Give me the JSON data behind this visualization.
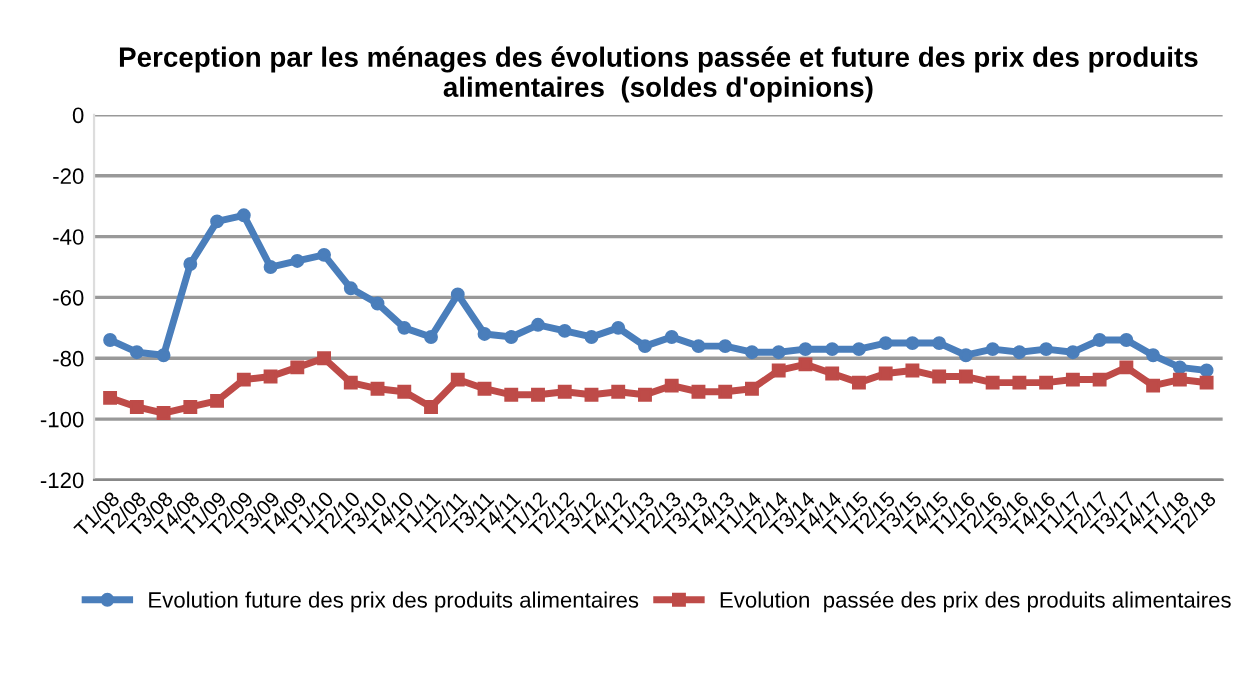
{
  "chart_data": {
    "type": "line",
    "title": "Perception par les ménages des évolutions passée et future des prix des produits alimentaires  (soldes d'opinions)",
    "categories": [
      "T1/08",
      "T2/08",
      "T3/08",
      "T4/08",
      "T1/09",
      "T2/09",
      "T3/09",
      "T4/09",
      "T1/10",
      "T2/10",
      "T3/10",
      "T4/10",
      "T1/11",
      "T2/11",
      "T3/11",
      "T4/11",
      "T1/12",
      "T2/12",
      "T3/12",
      "T4/12",
      "T1/13",
      "T2/13",
      "T3/13",
      "T4/13",
      "T1/14",
      "T2/14",
      "T3/14",
      "T4/14",
      "T1/15",
      "T2/15",
      "T3/15",
      "T4/15",
      "T1/16",
      "T2/16",
      "T3/16",
      "T4/16",
      "T1/17",
      "T2/17",
      "T3/17",
      "T4/17",
      "T1/18",
      "T2/18"
    ],
    "series": [
      {
        "name": "Evolution future des prix des produits alimentaires",
        "color": "#4a7ebb",
        "marker": "circle",
        "values": [
          -74,
          -78,
          -79,
          -49,
          -35,
          -33,
          -50,
          -48,
          -46,
          -57,
          -62,
          -70,
          -73,
          -59,
          -72,
          -73,
          -69,
          -71,
          -73,
          -70,
          -76,
          -73,
          -76,
          -76,
          -78,
          -78,
          -77,
          -77,
          -77,
          -75,
          -75,
          -75,
          -79,
          -77,
          -78,
          -77,
          -78,
          -74,
          -74,
          -79,
          -83,
          -84
        ]
      },
      {
        "name": "Evolution  passée des prix des produits alimentaires",
        "color": "#be4b48",
        "marker": "square",
        "values": [
          -93,
          -96,
          -98,
          -96,
          -94,
          -87,
          -86,
          -83,
          -80,
          -88,
          -90,
          -91,
          -96,
          -87,
          -90,
          -92,
          -92,
          -91,
          -92,
          -91,
          -92,
          -89,
          -91,
          -91,
          -90,
          -84,
          -82,
          -85,
          -88,
          -85,
          -84,
          -86,
          -86,
          -88,
          -88,
          -88,
          -87,
          -87,
          -83,
          -89,
          -87,
          -88
        ]
      }
    ],
    "ylim": [
      -120,
      0
    ],
    "yticks": [
      -120,
      -100,
      -80,
      -60,
      -40,
      -20,
      0
    ],
    "grid": "y",
    "legend": "bottom",
    "line_style": "solid"
  }
}
